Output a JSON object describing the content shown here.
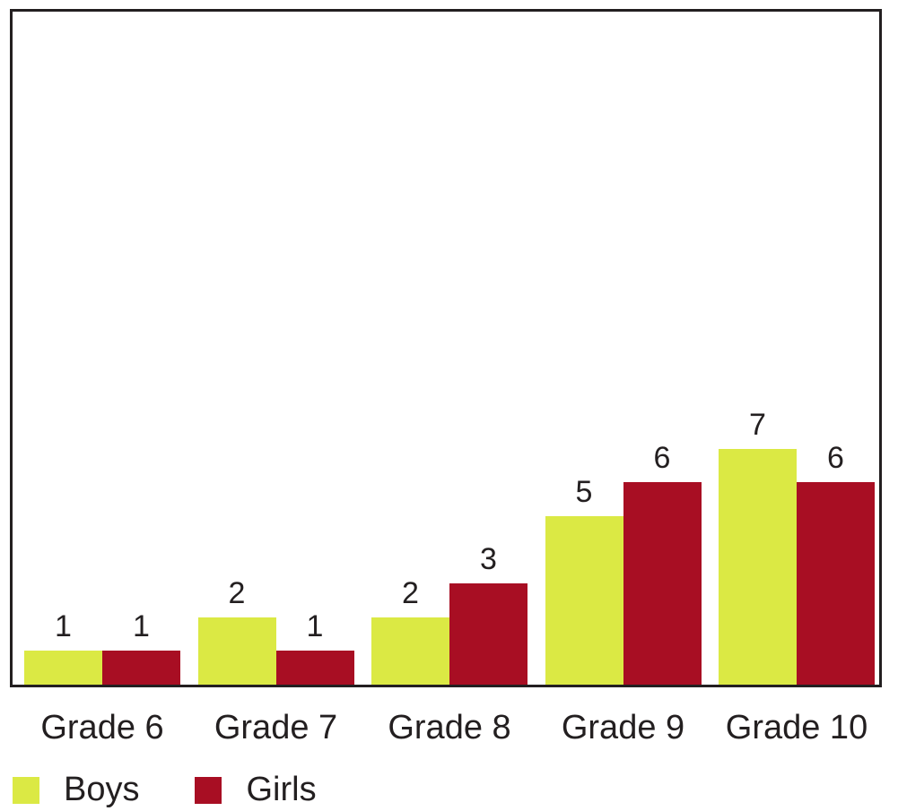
{
  "chart_data": {
    "type": "bar",
    "title": "",
    "xlabel": "",
    "ylabel": "",
    "categories": [
      "Grade 6",
      "Grade 7",
      "Grade 8",
      "Grade 9",
      "Grade 10"
    ],
    "series": [
      {
        "name": "Boys",
        "color": "#dbe944",
        "values": [
          1,
          2,
          2,
          5,
          7
        ]
      },
      {
        "name": "Girls",
        "color": "#a80e23",
        "values": [
          1,
          1,
          3,
          6,
          6
        ]
      }
    ],
    "ylim": [
      0,
      20
    ],
    "grid": false,
    "legend_position": "bottom-left",
    "data_labels": true
  },
  "legend": {
    "boys": "Boys",
    "girls": "Girls"
  }
}
